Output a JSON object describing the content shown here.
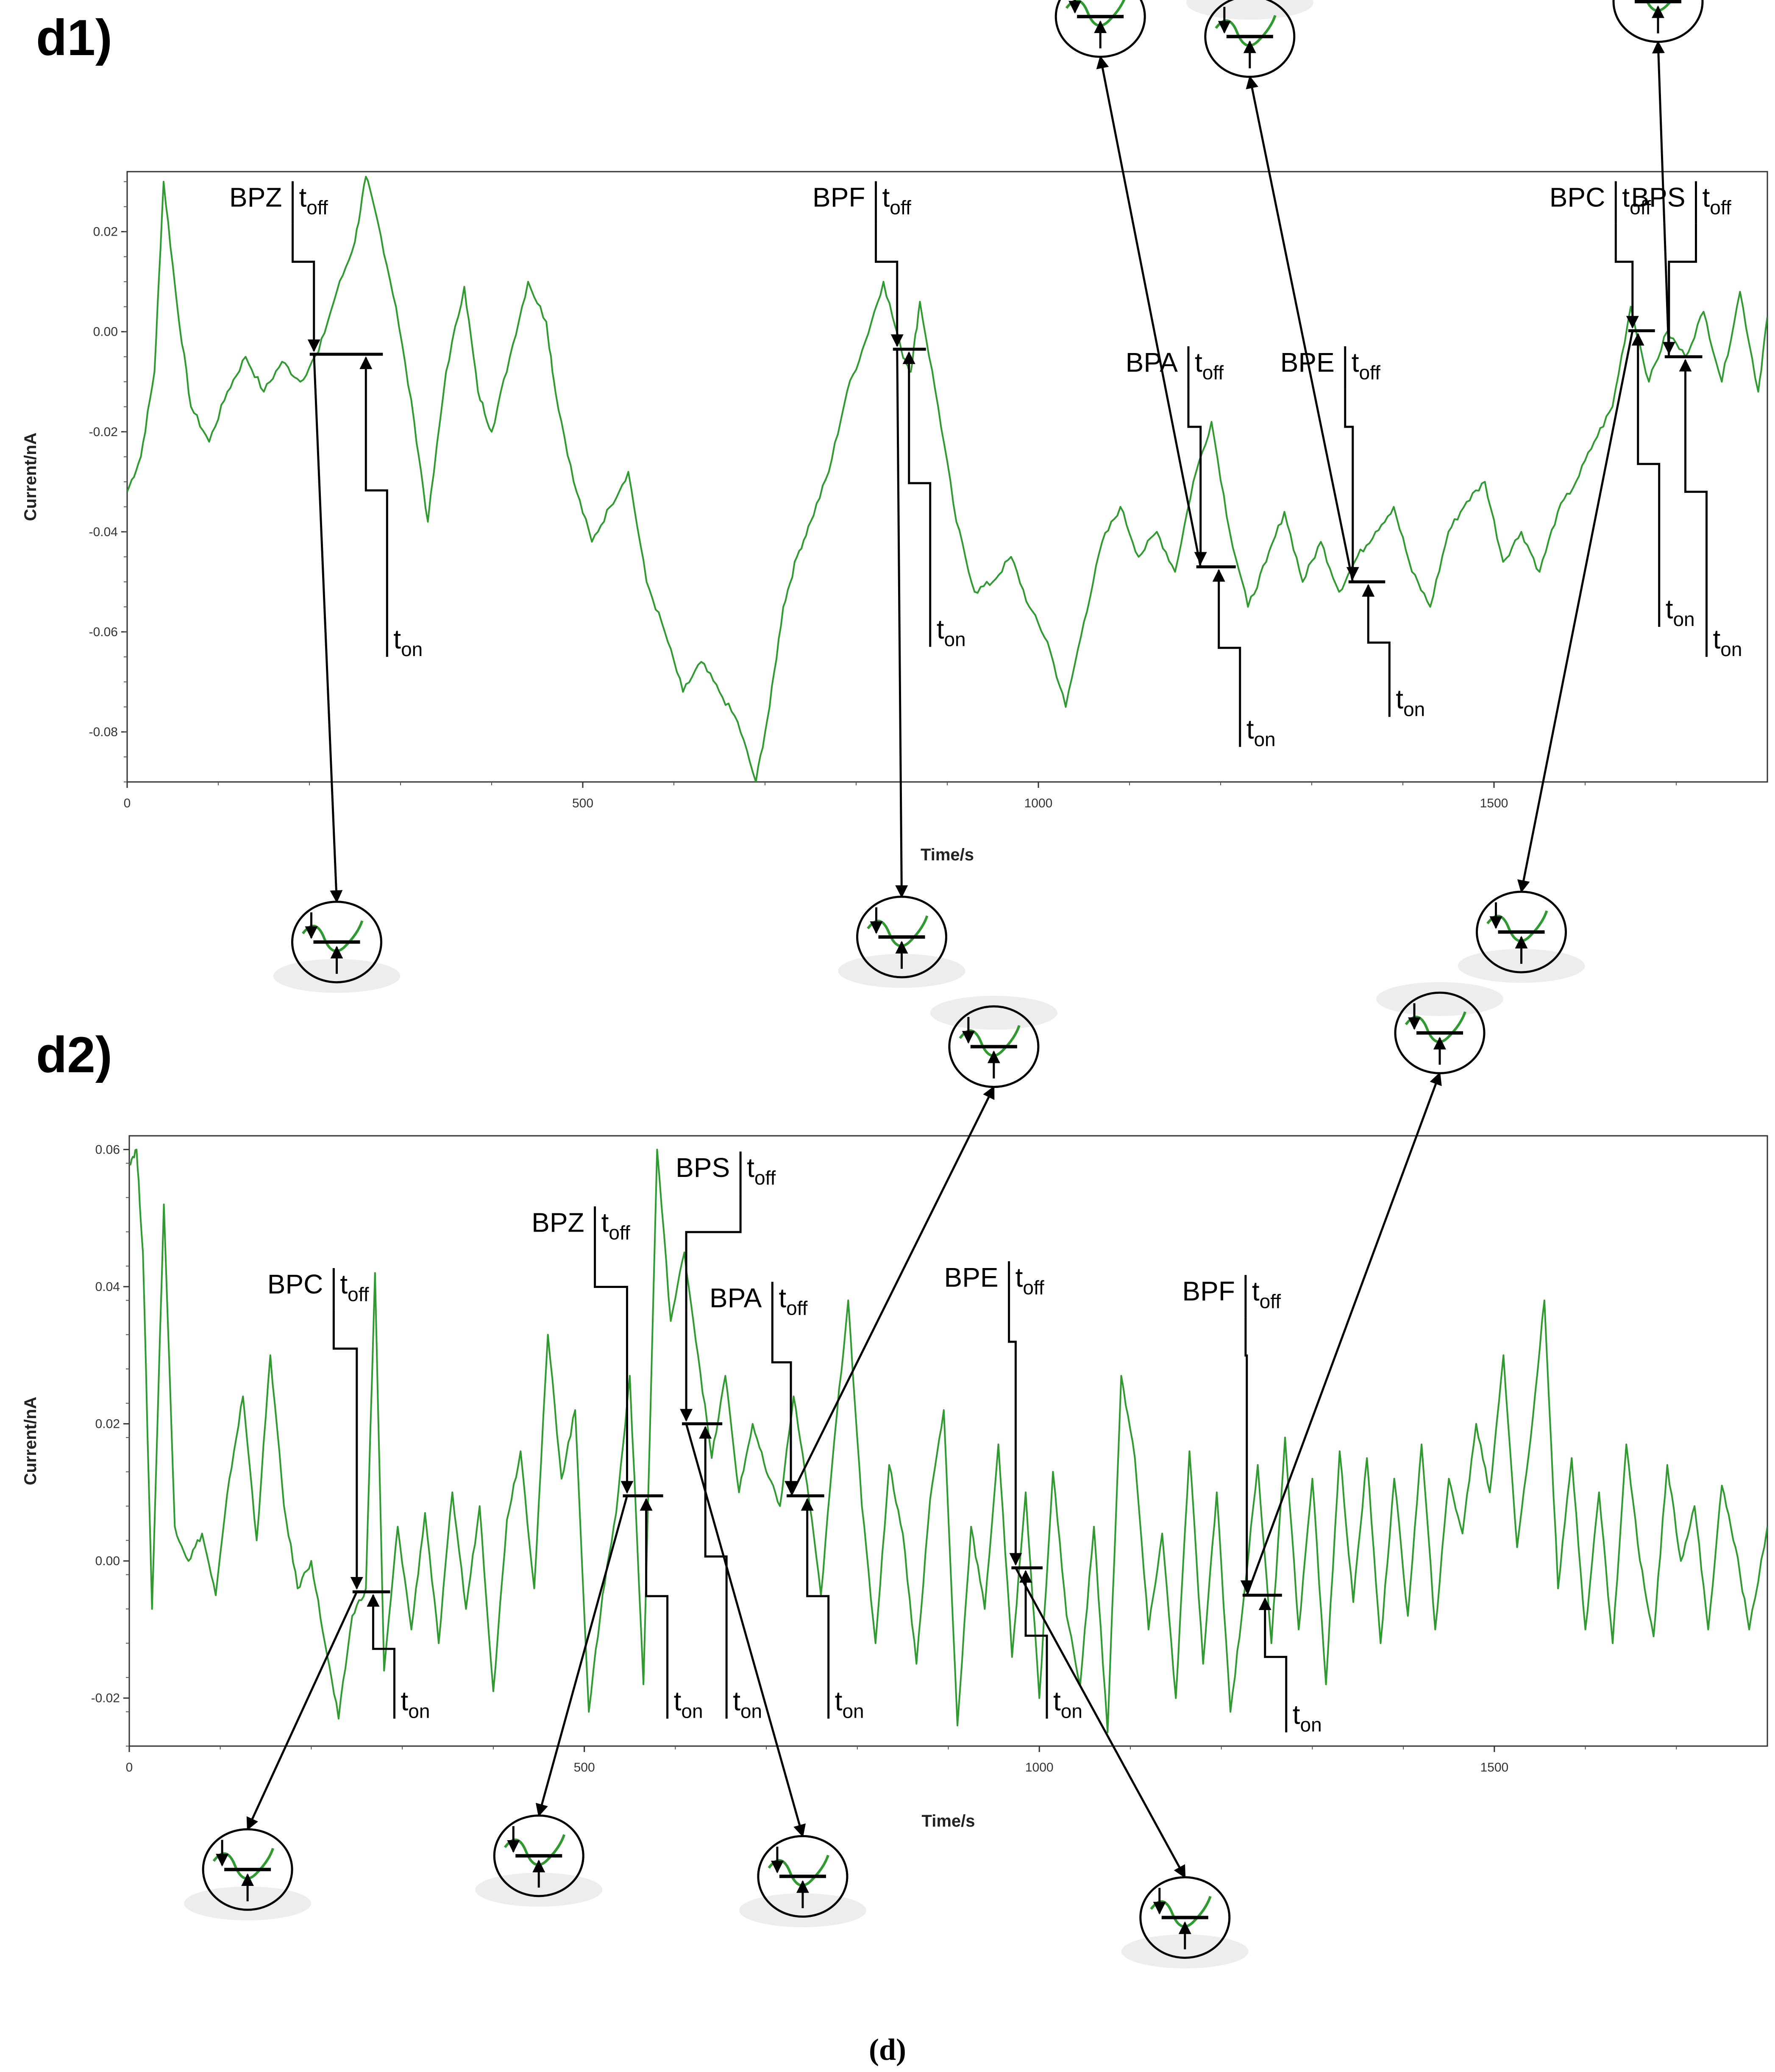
{
  "caption": "(d)",
  "colors": {
    "trace": "#2f9a2f",
    "annotation": "#000000",
    "frame": "#333333"
  },
  "chart_data": [
    {
      "panel_label": "d1)",
      "type": "line",
      "xlabel": "Time/s",
      "ylabel": "Current/nA",
      "xlim": [
        0,
        1800
      ],
      "ylim": [
        -0.09,
        0.032
      ],
      "xticks": [
        0,
        500,
        1000,
        1500
      ],
      "yticks": [
        0.02,
        0.0,
        -0.02,
        -0.04,
        -0.06,
        -0.08
      ],
      "ytick_labels": [
        "0.02",
        "0.00",
        "-0.02",
        "-0.04",
        "-0.06",
        "-0.08"
      ],
      "series": [
        {
          "x": [
            0,
            15,
            30,
            40,
            55,
            70,
            90,
            110,
            130,
            150,
            170,
            190,
            210,
            230,
            250,
            262,
            275,
            295,
            315,
            330,
            350,
            370,
            385,
            400,
            420,
            440,
            460,
            470,
            490,
            510,
            530,
            550,
            570,
            590,
            610,
            630,
            650,
            670,
            690,
            705,
            720,
            735,
            750,
            770,
            790,
            810,
            830,
            850,
            860,
            870,
            890,
            910,
            930,
            950,
            970,
            990,
            1010,
            1030,
            1050,
            1070,
            1090,
            1110,
            1130,
            1150,
            1170,
            1190,
            1210,
            1230,
            1250,
            1270,
            1290,
            1310,
            1330,
            1350,
            1370,
            1390,
            1410,
            1430,
            1450,
            1470,
            1490,
            1510,
            1530,
            1550,
            1570,
            1590,
            1610,
            1630,
            1650,
            1670,
            1690,
            1710,
            1730,
            1750,
            1770,
            1790,
            1800
          ],
          "y": [
            -0.032,
            -0.025,
            -0.008,
            0.03,
            0.005,
            -0.015,
            -0.022,
            -0.012,
            -0.005,
            -0.012,
            -0.006,
            -0.01,
            -0.004,
            0.008,
            0.018,
            0.031,
            0.022,
            0.005,
            -0.018,
            -0.038,
            -0.008,
            0.009,
            -0.012,
            -0.02,
            -0.005,
            0.01,
            0.002,
            -0.012,
            -0.03,
            -0.042,
            -0.035,
            -0.028,
            -0.05,
            -0.06,
            -0.072,
            -0.066,
            -0.072,
            -0.078,
            -0.09,
            -0.075,
            -0.055,
            -0.045,
            -0.038,
            -0.028,
            -0.012,
            -0.002,
            0.01,
            -0.004,
            -0.008,
            0.006,
            -0.015,
            -0.038,
            -0.052,
            -0.05,
            -0.045,
            -0.055,
            -0.062,
            -0.075,
            -0.058,
            -0.042,
            -0.035,
            -0.045,
            -0.04,
            -0.048,
            -0.03,
            -0.018,
            -0.04,
            -0.055,
            -0.046,
            -0.036,
            -0.05,
            -0.042,
            -0.052,
            -0.045,
            -0.04,
            -0.035,
            -0.048,
            -0.055,
            -0.04,
            -0.034,
            -0.03,
            -0.046,
            -0.04,
            -0.048,
            -0.036,
            -0.03,
            -0.022,
            -0.015,
            0.005,
            -0.01,
            0.0,
            -0.005,
            0.004,
            -0.01,
            0.008,
            -0.012,
            0.003
          ]
        }
      ],
      "annotations": [
        {
          "label": "BPZ",
          "t_off": 205,
          "t_on": 262,
          "level": -0.0045,
          "marker_side": "left",
          "text_x": 170,
          "text_y": 0.025,
          "ton_y": -0.065,
          "zoom": "below",
          "zoom_x": 230,
          "zoom_y": -0.122
        },
        {
          "label": "BPF",
          "t_off": 845,
          "t_on": 858,
          "level": -0.0035,
          "marker_side": "left",
          "text_x": 810,
          "text_y": 0.025,
          "ton_y": -0.063,
          "zoom": "below",
          "zoom_x": 850,
          "zoom_y": -0.121
        },
        {
          "label": "BPA",
          "t_off": 1178,
          "t_on": 1198,
          "level": -0.047,
          "marker_side": "left",
          "text_x": 1153,
          "text_y": -0.008,
          "ton_y": -0.083,
          "zoom": "above",
          "zoom_x": 1068,
          "zoom_y": 0.063
        },
        {
          "label": "BPE",
          "t_off": 1345,
          "t_on": 1362,
          "level": -0.05,
          "marker_side": "left",
          "text_x": 1325,
          "text_y": -0.008,
          "ton_y": -0.077,
          "zoom": "above",
          "zoom_x": 1232,
          "zoom_y": 0.059
        },
        {
          "label": "BPC",
          "t_off": 1652,
          "t_on": 1658,
          "level": 0.0002,
          "marker_side": "left",
          "text_x": 1622,
          "text_y": 0.025,
          "ton_y": -0.059,
          "zoom": "below",
          "zoom_x": 1530,
          "zoom_y": -0.12
        },
        {
          "label": "BPS",
          "t_off": 1692,
          "t_on": 1710,
          "level": -0.005,
          "marker_side": "right",
          "text_x": 1710,
          "text_y": 0.025,
          "ton_y": -0.065,
          "zoom": "above",
          "zoom_x": 1680,
          "zoom_y": 0.066
        }
      ]
    },
    {
      "panel_label": "d2)",
      "type": "line",
      "xlabel": "Time/s",
      "ylabel": "Current/nA",
      "xlim": [
        0,
        1800
      ],
      "ylim": [
        -0.027,
        0.062
      ],
      "xticks": [
        0,
        500,
        1000,
        1500
      ],
      "yticks": [
        0.06,
        0.04,
        0.02,
        0.0,
        -0.02
      ],
      "ytick_labels": [
        "0.06",
        "0.04",
        "0.02",
        "0.00",
        "-0.02"
      ],
      "series": [
        {
          "x": [
            0,
            8,
            15,
            25,
            38,
            50,
            65,
            80,
            95,
            110,
            125,
            140,
            155,
            170,
            185,
            200,
            215,
            230,
            245,
            260,
            270,
            280,
            295,
            310,
            325,
            340,
            355,
            370,
            385,
            400,
            415,
            430,
            445,
            460,
            475,
            490,
            505,
            520,
            535,
            550,
            565,
            580,
            595,
            610,
            625,
            640,
            655,
            670,
            685,
            700,
            715,
            730,
            745,
            760,
            775,
            790,
            805,
            820,
            835,
            850,
            865,
            880,
            895,
            910,
            925,
            940,
            955,
            970,
            985,
            1000,
            1015,
            1030,
            1045,
            1060,
            1075,
            1090,
            1105,
            1120,
            1135,
            1150,
            1165,
            1180,
            1195,
            1210,
            1225,
            1240,
            1255,
            1270,
            1285,
            1300,
            1315,
            1330,
            1345,
            1360,
            1375,
            1390,
            1405,
            1420,
            1435,
            1450,
            1465,
            1480,
            1495,
            1510,
            1525,
            1540,
            1555,
            1570,
            1585,
            1600,
            1615,
            1630,
            1645,
            1660,
            1675,
            1690,
            1705,
            1720,
            1735,
            1750,
            1765,
            1780,
            1800
          ],
          "y": [
            0.058,
            0.06,
            0.045,
            -0.007,
            0.052,
            0.005,
            0.0,
            0.004,
            -0.005,
            0.012,
            0.024,
            0.003,
            0.03,
            0.008,
            -0.004,
            0.0,
            -0.012,
            -0.023,
            -0.008,
            -0.004,
            0.042,
            -0.016,
            0.005,
            -0.01,
            0.007,
            -0.012,
            0.01,
            -0.007,
            0.008,
            -0.019,
            0.006,
            0.016,
            -0.004,
            0.033,
            0.012,
            0.022,
            -0.022,
            -0.005,
            0.007,
            0.027,
            -0.018,
            0.06,
            0.035,
            0.045,
            0.03,
            0.015,
            0.027,
            0.01,
            0.02,
            0.013,
            0.008,
            0.024,
            0.011,
            -0.005,
            0.018,
            0.038,
            0.008,
            -0.012,
            0.014,
            0.004,
            -0.015,
            0.009,
            0.022,
            -0.024,
            0.005,
            -0.007,
            0.017,
            -0.014,
            0.01,
            -0.02,
            0.013,
            -0.008,
            -0.018,
            0.005,
            -0.025,
            0.027,
            0.015,
            -0.01,
            0.004,
            -0.02,
            0.016,
            -0.015,
            0.01,
            -0.022,
            -0.005,
            0.014,
            -0.012,
            0.018,
            -0.01,
            0.012,
            -0.018,
            0.016,
            -0.006,
            0.015,
            -0.012,
            0.012,
            -0.008,
            0.017,
            -0.01,
            0.012,
            0.004,
            0.02,
            0.01,
            0.03,
            0.002,
            0.018,
            0.038,
            -0.004,
            0.015,
            -0.01,
            0.01,
            -0.012,
            0.017,
            0.0,
            -0.011,
            0.014,
            0.0,
            0.008,
            -0.01,
            0.011,
            0.002,
            -0.01,
            0.005
          ]
        }
      ],
      "annotations": [
        {
          "label": "BPC",
          "t_off": 250,
          "t_on": 268,
          "level": -0.0045,
          "marker_side": "left",
          "text_x": 213,
          "text_y": 0.039,
          "ton_y": -0.023,
          "zoom": "below",
          "zoom_x": 130,
          "zoom_y": -0.045
        },
        {
          "label": "BPZ",
          "t_off": 547,
          "t_on": 568,
          "level": 0.0095,
          "marker_side": "left",
          "text_x": 500,
          "text_y": 0.048,
          "ton_y": -0.023,
          "zoom": "below",
          "zoom_x": 450,
          "zoom_y": -0.043
        },
        {
          "label": "BPS",
          "t_off": 612,
          "t_on": 633,
          "level": 0.02,
          "marker_side": "left",
          "text_x": 660,
          "text_y": 0.056,
          "ton_y": -0.023,
          "zoom": "below",
          "zoom_x": 740,
          "zoom_y": -0.046
        },
        {
          "label": "BPA",
          "t_off": 727,
          "t_on": 745,
          "level": 0.0095,
          "marker_side": "left",
          "text_x": 695,
          "text_y": 0.037,
          "ton_y": -0.023,
          "zoom": "above",
          "zoom_x": 950,
          "zoom_y": 0.075
        },
        {
          "label": "BPE",
          "t_off": 974,
          "t_on": 985,
          "level": -0.001,
          "marker_side": "left",
          "text_x": 955,
          "text_y": 0.04,
          "ton_y": -0.023,
          "zoom": "below",
          "zoom_x": 1160,
          "zoom_y": -0.052
        },
        {
          "label": "BPF",
          "t_off": 1228,
          "t_on": 1248,
          "level": -0.005,
          "marker_side": "left",
          "text_x": 1215,
          "text_y": 0.038,
          "ton_y": -0.025,
          "zoom": "above",
          "zoom_x": 1440,
          "zoom_y": 0.077
        }
      ]
    }
  ],
  "labels": {
    "t": "t",
    "off": "off",
    "on": "on"
  }
}
